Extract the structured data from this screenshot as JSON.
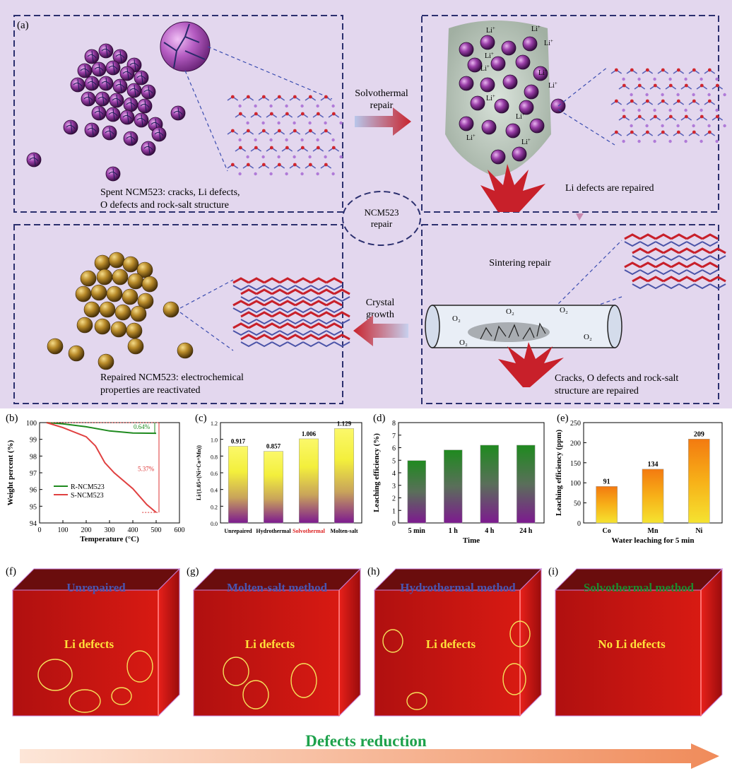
{
  "panel_a": {
    "label": "(a)",
    "spent_caption_1": "Spent NCM523: cracks, Li defects,",
    "spent_caption_2": "O defects and rock-salt structure",
    "solvothermal_1": "Solvothermal",
    "solvothermal_2": "repair",
    "li_repaired": "Li defects are repaired",
    "center_1": "NCM523",
    "center_2": "repair",
    "sintering": "Sintering repair",
    "crystal_1": "Crystal",
    "crystal_2": "growth",
    "repaired_caption_1": "Repaired NCM523: electrochemical",
    "repaired_caption_2": "properties are reactivated",
    "cracks_caption_1": "Cracks, O defects and rock-salt",
    "cracks_caption_2": "structure are repaired",
    "li_plus": "Li",
    "o2": "O₂"
  },
  "panel_labels": {
    "b": "(b)",
    "c": "(c)",
    "d": "(d)",
    "e": "(e)",
    "f": "(f)",
    "g": "(g)",
    "h": "(h)",
    "i": "(i)"
  },
  "chart_data": [
    {
      "type": "line",
      "panel": "b",
      "xlabel": "Temperature (°C)",
      "ylabel": "Weight percent (%)",
      "xlim": [
        0,
        600
      ],
      "ylim": [
        94,
        100
      ],
      "xticks": [
        0,
        100,
        200,
        300,
        400,
        500,
        600
      ],
      "yticks": [
        94,
        95,
        96,
        97,
        98,
        99,
        100
      ],
      "series": [
        {
          "name": "R-NCM523",
          "color": "#1f8a1f",
          "x": [
            30,
            100,
            200,
            300,
            400,
            500
          ],
          "y": [
            100,
            99.93,
            99.75,
            99.5,
            99.38,
            99.36
          ]
        },
        {
          "name": "S-NCM523",
          "color": "#e04040",
          "x": [
            30,
            100,
            200,
            240,
            280,
            320,
            400,
            460,
            500
          ],
          "y": [
            100,
            99.7,
            99.15,
            98.6,
            97.6,
            97.0,
            96.05,
            95.1,
            94.63
          ]
        }
      ],
      "annotations": [
        "0.64%",
        "5.37%"
      ]
    },
    {
      "type": "bar",
      "panel": "c",
      "ylabel": "Li/(1.05×(Ni+Co+Mn))",
      "categories": [
        "Unrepaired",
        "Hydrothermal",
        "Solvothermal",
        "Molten-salt"
      ],
      "values": [
        0.917,
        0.857,
        1.006,
        1.129
      ],
      "ylim": [
        0,
        1.2
      ],
      "yticks": [
        0.0,
        0.2,
        0.4,
        0.6,
        0.8,
        1.0,
        1.2
      ],
      "data_labels": [
        "0.917",
        "0.857",
        "1.006",
        "1.129"
      ]
    },
    {
      "type": "bar",
      "panel": "d",
      "xlabel": "Time",
      "ylabel": "Leaching efficiency (%)",
      "categories": [
        "5 min",
        "1 h",
        "4 h",
        "24 h"
      ],
      "values": [
        4.97,
        5.82,
        6.2,
        6.2
      ],
      "ylim": [
        0,
        8
      ],
      "yticks": [
        0,
        1,
        2,
        3,
        4,
        5,
        6,
        7,
        8
      ]
    },
    {
      "type": "bar",
      "panel": "e",
      "xlabel": "Water leaching for 5 min",
      "ylabel": "Leaching efficiency (ppm)",
      "categories": [
        "Co",
        "Mn",
        "Ni"
      ],
      "values": [
        91,
        134,
        209
      ],
      "ylim": [
        0,
        250
      ],
      "yticks": [
        0,
        50,
        100,
        150,
        200,
        250
      ],
      "data_labels": [
        "91",
        "134",
        "209"
      ]
    }
  ],
  "cubes": [
    {
      "title": "Unrepaired",
      "title_color": "#4a55b0",
      "defect_text": "Li defects",
      "circles": 4
    },
    {
      "title": "Molten-salt method",
      "title_color": "#4a55b0",
      "defect_text": "Li defects",
      "circles": 3
    },
    {
      "title": "Hydrothermal method",
      "title_color": "#4a55b0",
      "defect_text": "Li defects",
      "circles": 4
    },
    {
      "title": "Solvothermal method",
      "title_color": "#1e8a2e",
      "defect_text": "No Li defects",
      "circles": 0
    }
  ],
  "bottom_arrow_label": "Defects reduction"
}
